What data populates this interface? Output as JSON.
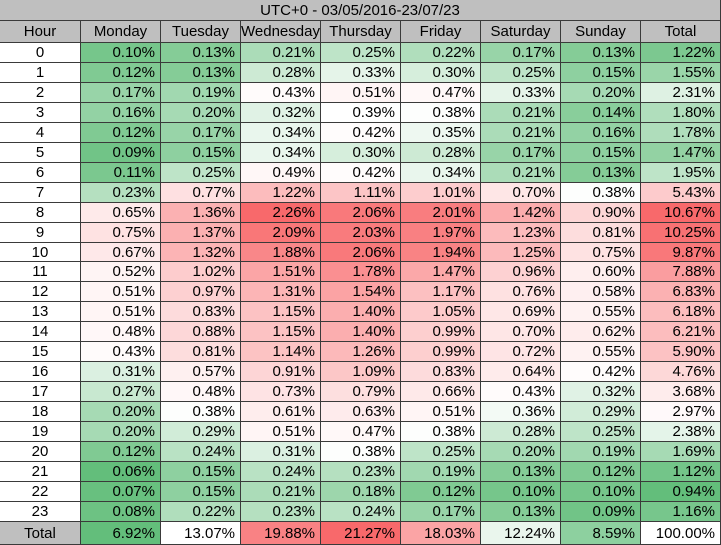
{
  "chart_data": {
    "type": "heatmap",
    "title": "UTC+0 - 03/05/2016-23/07/23",
    "corner_label": "Hour",
    "columns": [
      "Monday",
      "Tuesday",
      "Wednesday",
      "Thursday",
      "Friday",
      "Saturday",
      "Sunday"
    ],
    "total_label": "Total",
    "rows": [
      "0",
      "1",
      "2",
      "3",
      "4",
      "5",
      "6",
      "7",
      "8",
      "9",
      "10",
      "11",
      "12",
      "13",
      "14",
      "15",
      "16",
      "17",
      "18",
      "19",
      "20",
      "21",
      "22",
      "23"
    ],
    "values": [
      [
        "0.10%",
        "0.13%",
        "0.21%",
        "0.25%",
        "0.22%",
        "0.17%",
        "0.13%"
      ],
      [
        "0.12%",
        "0.13%",
        "0.28%",
        "0.33%",
        "0.30%",
        "0.25%",
        "0.15%"
      ],
      [
        "0.17%",
        "0.19%",
        "0.43%",
        "0.51%",
        "0.47%",
        "0.33%",
        "0.20%"
      ],
      [
        "0.16%",
        "0.20%",
        "0.32%",
        "0.39%",
        "0.38%",
        "0.21%",
        "0.14%"
      ],
      [
        "0.12%",
        "0.17%",
        "0.34%",
        "0.42%",
        "0.35%",
        "0.21%",
        "0.16%"
      ],
      [
        "0.09%",
        "0.15%",
        "0.34%",
        "0.30%",
        "0.28%",
        "0.17%",
        "0.15%"
      ],
      [
        "0.11%",
        "0.25%",
        "0.49%",
        "0.42%",
        "0.34%",
        "0.21%",
        "0.13%"
      ],
      [
        "0.23%",
        "0.77%",
        "1.22%",
        "1.11%",
        "1.01%",
        "0.70%",
        "0.38%"
      ],
      [
        "0.65%",
        "1.36%",
        "2.26%",
        "2.06%",
        "2.01%",
        "1.42%",
        "0.90%"
      ],
      [
        "0.75%",
        "1.37%",
        "2.09%",
        "2.03%",
        "1.97%",
        "1.23%",
        "0.81%"
      ],
      [
        "0.67%",
        "1.32%",
        "1.88%",
        "2.06%",
        "1.94%",
        "1.25%",
        "0.75%"
      ],
      [
        "0.52%",
        "1.02%",
        "1.51%",
        "1.78%",
        "1.47%",
        "0.96%",
        "0.60%"
      ],
      [
        "0.51%",
        "0.97%",
        "1.31%",
        "1.54%",
        "1.17%",
        "0.76%",
        "0.58%"
      ],
      [
        "0.51%",
        "0.83%",
        "1.15%",
        "1.40%",
        "1.05%",
        "0.69%",
        "0.55%"
      ],
      [
        "0.48%",
        "0.88%",
        "1.15%",
        "1.40%",
        "0.99%",
        "0.70%",
        "0.62%"
      ],
      [
        "0.43%",
        "0.81%",
        "1.14%",
        "1.26%",
        "0.99%",
        "0.72%",
        "0.55%"
      ],
      [
        "0.31%",
        "0.57%",
        "0.91%",
        "1.09%",
        "0.83%",
        "0.64%",
        "0.42%"
      ],
      [
        "0.27%",
        "0.48%",
        "0.73%",
        "0.79%",
        "0.66%",
        "0.43%",
        "0.32%"
      ],
      [
        "0.20%",
        "0.38%",
        "0.61%",
        "0.63%",
        "0.51%",
        "0.36%",
        "0.29%"
      ],
      [
        "0.20%",
        "0.29%",
        "0.51%",
        "0.47%",
        "0.38%",
        "0.28%",
        "0.25%"
      ],
      [
        "0.12%",
        "0.24%",
        "0.31%",
        "0.38%",
        "0.25%",
        "0.20%",
        "0.19%"
      ],
      [
        "0.06%",
        "0.15%",
        "0.24%",
        "0.23%",
        "0.19%",
        "0.13%",
        "0.12%"
      ],
      [
        "0.07%",
        "0.15%",
        "0.21%",
        "0.18%",
        "0.12%",
        "0.10%",
        "0.10%"
      ],
      [
        "0.08%",
        "0.22%",
        "0.23%",
        "0.24%",
        "0.17%",
        "0.13%",
        "0.09%"
      ]
    ],
    "row_totals": [
      "1.22%",
      "1.55%",
      "2.31%",
      "1.80%",
      "1.78%",
      "1.47%",
      "1.95%",
      "5.43%",
      "10.67%",
      "10.25%",
      "9.87%",
      "7.88%",
      "6.83%",
      "6.18%",
      "6.21%",
      "5.90%",
      "4.76%",
      "3.68%",
      "2.97%",
      "2.38%",
      "1.69%",
      "1.12%",
      "0.94%",
      "1.16%"
    ],
    "column_totals": [
      "6.92%",
      "13.07%",
      "19.88%",
      "21.27%",
      "18.03%",
      "12.24%",
      "8.59%"
    ],
    "grand_total": "100.00%",
    "colors": {
      "header_bg": "#bfbfbf",
      "grid_line": "#3a3a3a",
      "low": "#63be7b",
      "mid": "#ffffff",
      "high": "#f8696b"
    }
  }
}
